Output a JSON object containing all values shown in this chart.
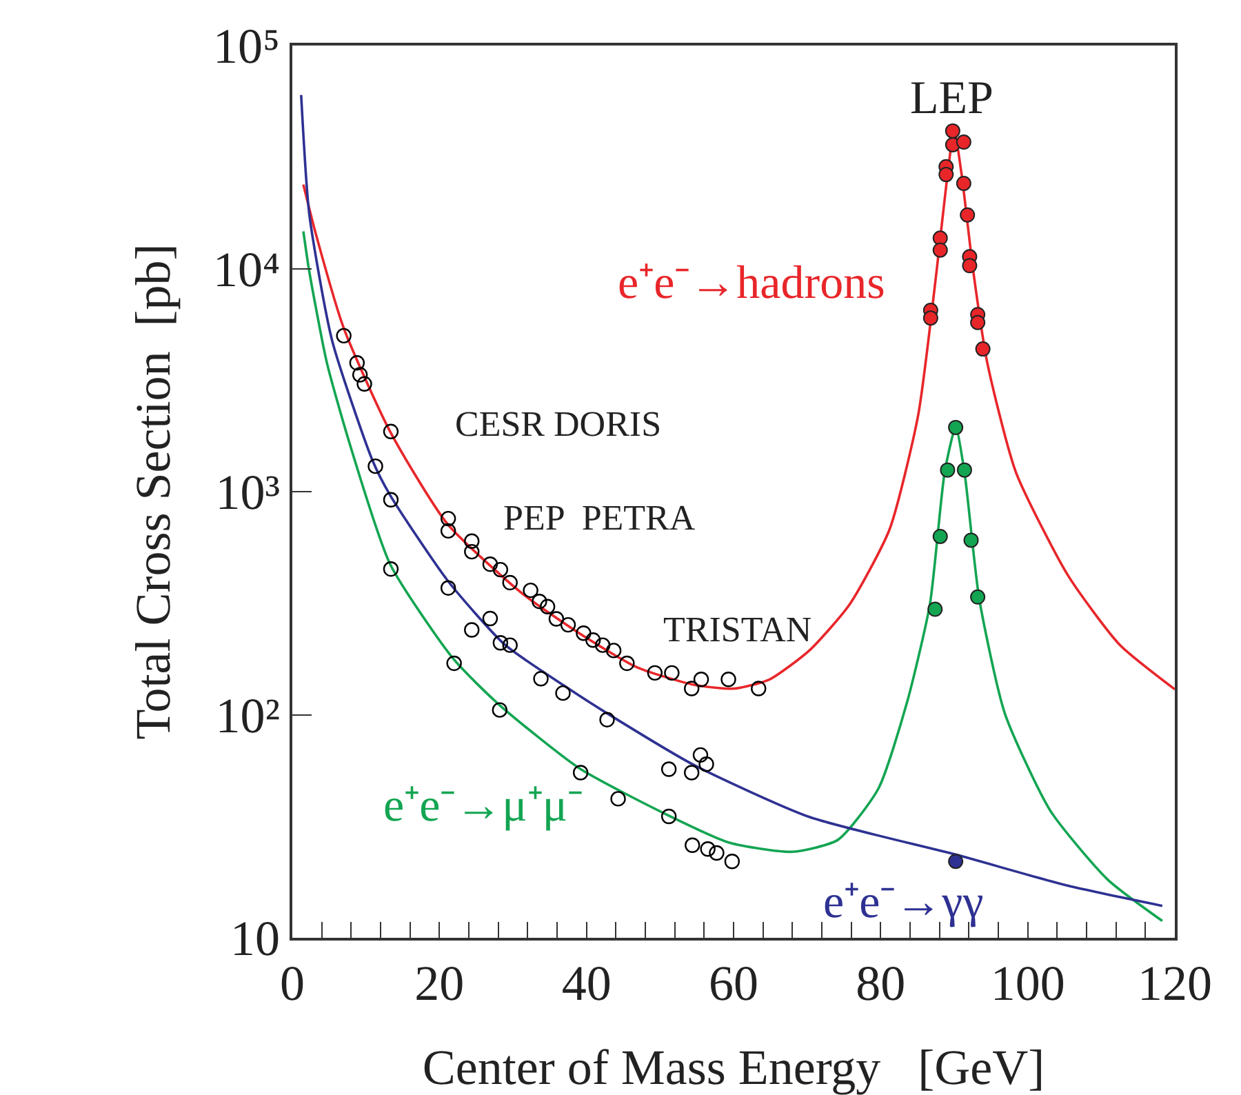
{
  "chart_data": {
    "type": "line",
    "xlabel": "Center of Mass Energy   [GeV]",
    "ylabel": "Total Cross Section  [pb]",
    "xlim": [
      0,
      120
    ],
    "xticks": [
      0,
      {
        "value": 4,
        "label": null
      },
      {
        "value": 8,
        "label": null
      },
      {
        "value": 12,
        "label": null
      },
      {
        "value": 16,
        "label": null
      },
      20,
      {
        "value": 24,
        "label": null
      },
      {
        "value": 28,
        "label": null
      },
      {
        "value": 32,
        "label": null
      },
      {
        "value": 36,
        "label": null
      },
      40,
      {
        "value": 44,
        "label": null
      },
      {
        "value": 48,
        "label": null
      },
      {
        "value": 52,
        "label": null
      },
      {
        "value": 56,
        "label": null
      },
      60,
      {
        "value": 64,
        "label": null
      },
      {
        "value": 68,
        "label": null
      },
      {
        "value": 72,
        "label": null
      },
      {
        "value": 76,
        "label": null
      },
      80,
      {
        "value": 84,
        "label": null
      },
      {
        "value": 88,
        "label": null
      },
      {
        "value": 92,
        "label": null
      },
      {
        "value": 96,
        "label": null
      },
      100,
      {
        "value": 104,
        "label": null
      },
      {
        "value": 108,
        "label": null
      },
      {
        "value": 112,
        "label": null
      },
      {
        "value": 116,
        "label": null
      },
      120
    ],
    "ylim": [
      10,
      100000
    ],
    "log": true,
    "yticks": [
      {
        "value": 10,
        "label": "10"
      },
      {
        "value": 100,
        "label": "10²"
      },
      {
        "value": 1000,
        "label": "10³"
      },
      {
        "value": 10000,
        "label": "10⁴"
      },
      {
        "value": 100000,
        "label": "10⁵"
      }
    ],
    "annotations": [
      "LEP",
      "CESR DORIS",
      "PEP  PETRA",
      "TRISTAN"
    ],
    "series": [
      {
        "name": "e⁺e⁻→hadrons",
        "color": "#e8262a",
        "marker": "none",
        "x": [
          1.5,
          3.1,
          7.0,
          13.3,
          21.1,
          31.2,
          39,
          46.9,
          54.7,
          60.2,
          64.9,
          70.3,
          75.8,
          81.2,
          85.1,
          87.6,
          89.1,
          90,
          91.0,
          92.6,
          94.5,
          98.4,
          105.5,
          112.5,
          120
        ],
        "values": [
          23800,
          14700,
          5400,
          1860,
          716,
          351,
          232,
          163,
          136,
          131,
          144,
          194,
          313,
          676,
          2200,
          9700,
          26600,
          41600,
          26600,
          9700,
          3780,
          1220,
          420,
          206,
          130
        ]
      },
      {
        "name": "e⁺e⁻→μ⁺μ⁻",
        "color": "#13a552",
        "marker": "none",
        "x": [
          1.5,
          2.3,
          4.7,
          7.8,
          13.3,
          21.9,
          28.1,
          39,
          50.8,
          59.4,
          68,
          74.2,
          79.7,
          83.6,
          86.7,
          88.7,
          90.2,
          91.4,
          93.4,
          96.9,
          103.1,
          110.9,
          118.3
        ],
        "values": [
          14700,
          9730,
          3780,
          1640,
          473,
          178,
          111,
          57.6,
          35.8,
          26.7,
          24.3,
          27.5,
          46.7,
          114,
          313,
          1220,
          1940,
          1220,
          332,
          101,
          37,
          18.2,
          11.9
        ]
      },
      {
        "name": "e⁺e⁻→γγ",
        "color": "#2e3192",
        "marker": "none",
        "x": [
          1.2,
          2.3,
          5.4,
          10.9,
          13.3,
          21.1,
          28.9,
          36.8,
          42.9,
          54.7,
          70.3,
          90.2,
          105.5,
          118.3
        ],
        "values": [
          60000,
          17600,
          4770,
          1380,
          964,
          400,
          206,
          136,
          101,
          59.3,
          34.8,
          23.6,
          17.1,
          13.9
        ]
      },
      {
        "type": "scatter",
        "color": "#000000",
        "marker": "circle",
        "x": [
          7.0,
          8.8,
          9.2,
          9.8,
          13.4,
          21.2,
          21.2,
          24.4,
          24.4,
          26.9,
          28.3,
          29.6,
          32.4,
          33.6,
          34.7,
          35.9,
          37.5,
          39.6,
          40.9,
          42.2,
          43.7,
          45.5,
          49.3,
          51.6,
          54.3,
          55.6,
          59.3,
          63.4
        ],
        "values": [
          5000,
          3780,
          3340,
          3040,
          1860,
          757,
          667,
          600,
          538,
          473,
          447,
          391,
          361,
          322,
          305,
          269,
          253,
          232,
          216,
          205,
          194,
          170,
          154,
          154,
          131,
          144,
          144,
          131
        ]
      },
      {
        "type": "scatter",
        "color": "#000000",
        "marker": "circle",
        "x": [
          13.4,
          22,
          28.2,
          39.2,
          44.3,
          51.2,
          54.4,
          56.5,
          57.7,
          59.8
        ],
        "values": [
          450,
          170,
          105,
          55,
          42,
          35,
          26,
          25,
          24,
          22
        ]
      },
      {
        "type": "scatter",
        "color": "#000000",
        "marker": "circle",
        "x": [
          11.3,
          13.4,
          21.2,
          24.4,
          26.9,
          28.3,
          29.6,
          33.8,
          36.8,
          42.8,
          51.2,
          54.3,
          55.5,
          56.3
        ],
        "values": [
          1300,
          920,
          370,
          240,
          270,
          210,
          205,
          145,
          125,
          95,
          57,
          55,
          66,
          60
        ]
      },
      {
        "type": "scatter",
        "color": "#e8262a",
        "marker": "circle",
        "x": [
          86.8,
          86.8,
          88.1,
          88.1,
          88.9,
          88.9,
          89.8,
          89.8,
          91.3,
          91.3,
          91.8,
          92.1,
          92.1,
          93.2,
          93.2,
          93.9
        ],
        "values": [
          6500,
          6000,
          13700,
          12100,
          28600,
          26400,
          41400,
          35900,
          36900,
          24100,
          17400,
          11300,
          10300,
          6220,
          5730,
          4360
        ]
      },
      {
        "type": "scatter",
        "color": "#13a552",
        "marker": "circle",
        "x": [
          87.4,
          88.1,
          89.1,
          90.2,
          91.4,
          92.3,
          93.2
        ],
        "values": [
          297,
          630,
          1250,
          1940,
          1250,
          606,
          337
        ]
      },
      {
        "type": "scatter",
        "color": "#2e3192",
        "marker": "circle",
        "x": [
          90.2
        ],
        "values": [
          22
        ]
      }
    ]
  }
}
